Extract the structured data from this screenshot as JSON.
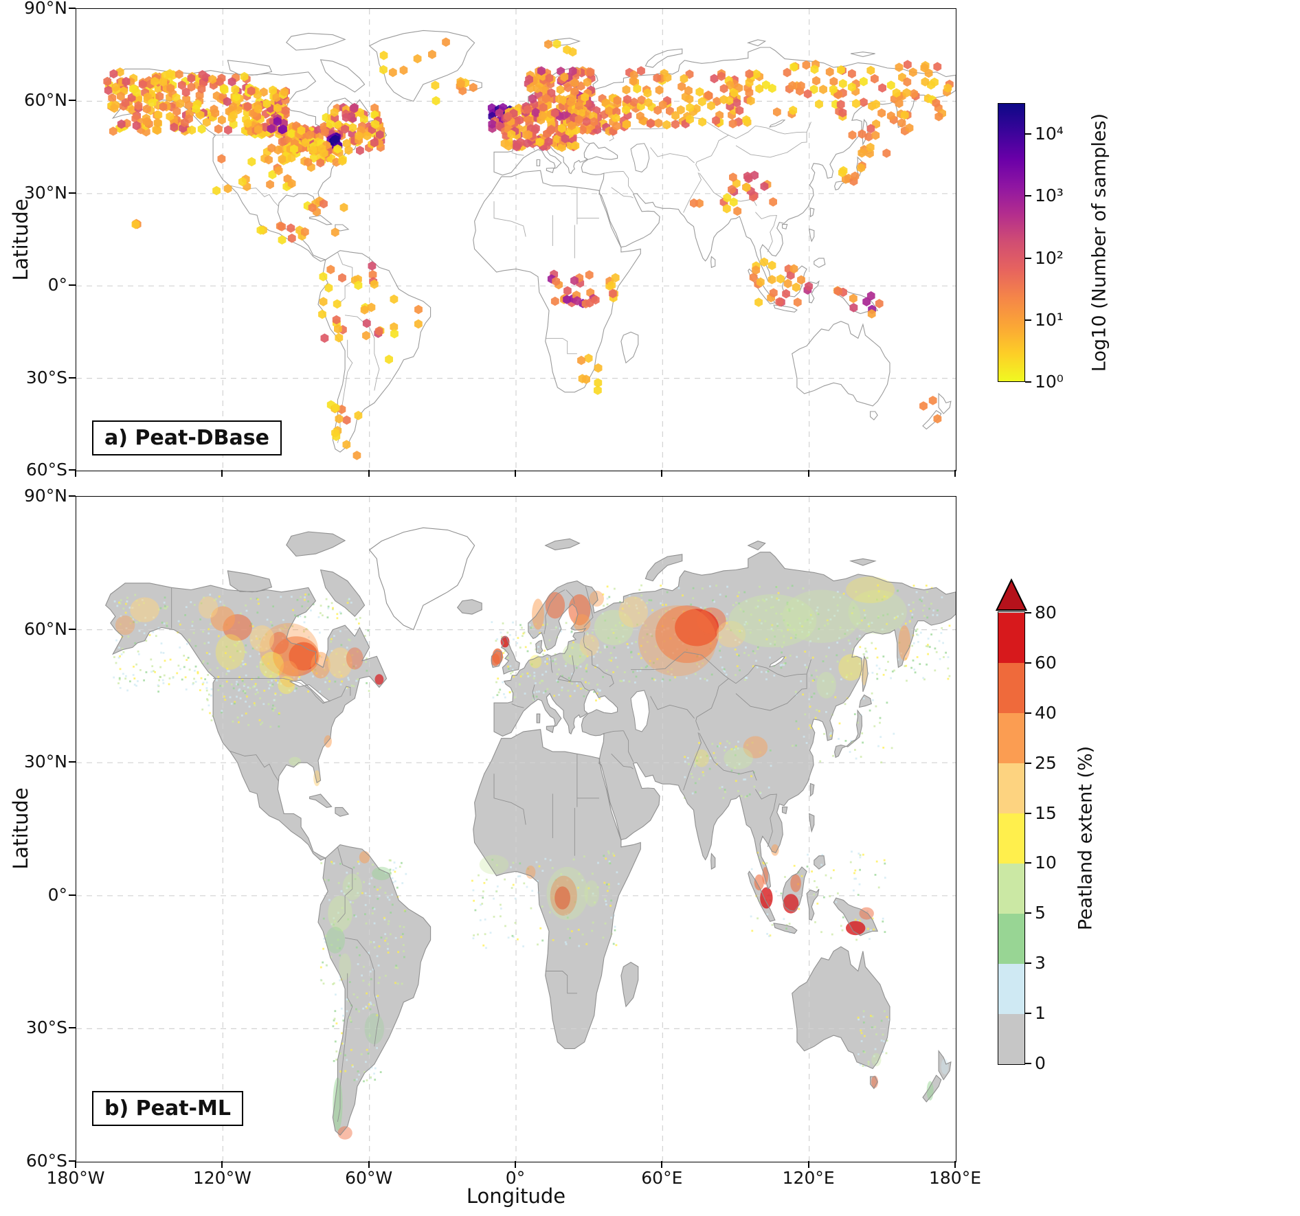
{
  "figure": {
    "xlabel": "Longitude",
    "ylabel": "Latitude",
    "x_ticks": [
      "180°W",
      "120°W",
      "60°W",
      "0°",
      "60°E",
      "120°E",
      "180°E"
    ],
    "y_ticks": [
      "90°N",
      "60°N",
      "30°N",
      "0°",
      "30°S",
      "60°S"
    ]
  },
  "panel_a": {
    "label": "a) Peat-DBase",
    "colorbar": {
      "label": "Log10 (Number of samples)",
      "ticks": [
        "10⁰",
        "10¹",
        "10²",
        "10³",
        "10⁴"
      ],
      "scale": "log",
      "range_decades": 4.5
    },
    "palette": [
      "#f0f921",
      "#fdce27",
      "#fba636",
      "#f58648",
      "#e7645e",
      "#d14e72",
      "#b42e8d",
      "#9016a2",
      "#6a00a8",
      "#3a049a",
      "#0d0887"
    ],
    "sample_clusters": [
      [
        -168,
        -140,
        58,
        70,
        40,
        0.05,
        0.45,
        11
      ],
      [
        -165,
        -110,
        50,
        69,
        160,
        0.05,
        0.5,
        12
      ],
      [
        -110,
        -94,
        49,
        65,
        90,
        0.05,
        0.5,
        13
      ],
      [
        -95,
        -76,
        43,
        52,
        70,
        0.05,
        0.5,
        45
      ],
      [
        -79,
        -55,
        44,
        58,
        90,
        0.05,
        0.55,
        46
      ],
      [
        -76,
        -71,
        45,
        48.5,
        12,
        0.75,
        1,
        14
      ],
      [
        -101,
        -95,
        50,
        55,
        7,
        0.55,
        0.85,
        15
      ],
      [
        -104,
        -68,
        39,
        47,
        40,
        0.05,
        0.35,
        16
      ],
      [
        -125,
        -80,
        30,
        42,
        20,
        0.05,
        0.3,
        17
      ],
      [
        -106,
        -84,
        14,
        22,
        10,
        0.05,
        0.4,
        18
      ],
      [
        -157,
        -154,
        19,
        21,
        3,
        0.1,
        0.3,
        19
      ],
      [
        -10,
        -2,
        51.5,
        58,
        20,
        0.7,
        1,
        20
      ],
      [
        -10,
        -1,
        50.5,
        57,
        12,
        0.35,
        0.65,
        21
      ],
      [
        -5,
        25,
        45,
        58,
        130,
        0.1,
        0.55,
        22
      ],
      [
        4,
        31,
        55,
        70,
        110,
        0.15,
        0.6,
        23
      ],
      [
        22,
        45,
        50,
        62,
        60,
        0.1,
        0.5,
        24
      ],
      [
        45,
        95,
        52,
        70,
        95,
        0.08,
        0.45,
        25
      ],
      [
        95,
        179,
        55,
        72,
        85,
        0.05,
        0.4,
        26
      ],
      [
        132,
        163,
        43,
        60,
        22,
        0.08,
        0.4,
        27
      ],
      [
        133,
        143,
        33,
        43,
        8,
        0.05,
        0.35,
        44
      ],
      [
        85,
        106,
        27,
        36,
        16,
        0.1,
        0.5,
        28
      ],
      [
        95,
        120,
        -6,
        8,
        24,
        0.1,
        0.6,
        29
      ],
      [
        130,
        151,
        -10,
        -1,
        10,
        0.2,
        0.7,
        30
      ],
      [
        14,
        32,
        -6,
        4,
        22,
        0.15,
        0.7,
        31
      ],
      [
        29,
        41,
        -6,
        6,
        8,
        0.1,
        0.4,
        32
      ],
      [
        24,
        34,
        -34,
        -21,
        7,
        0.05,
        0.3,
        33
      ],
      [
        -80,
        -55,
        -17,
        7,
        28,
        0.05,
        0.55,
        34
      ],
      [
        -52,
        -38,
        -24,
        -4,
        6,
        0.05,
        0.3,
        35
      ],
      [
        -76,
        -64,
        -56,
        -37,
        12,
        0.05,
        0.35,
        36
      ],
      [
        -86,
        -70,
        17,
        28,
        8,
        0.05,
        0.35,
        37
      ],
      [
        166,
        178,
        -47,
        -36,
        3,
        0.1,
        0.3,
        38
      ],
      [
        12,
        26,
        76,
        80,
        4,
        0.05,
        0.25,
        39
      ],
      [
        -24,
        -14,
        63,
        66.5,
        5,
        0.05,
        0.3,
        40
      ],
      [
        -55,
        -20,
        60,
        81,
        10,
        0.03,
        0.25,
        41
      ],
      [
        72,
        92,
        24,
        32,
        6,
        0.05,
        0.35,
        42
      ]
    ]
  },
  "panel_b": {
    "label": "b) Peat-ML",
    "colorbar": {
      "label": "Peatland extent (%)",
      "ticks": [
        "0",
        "1",
        "3",
        "5",
        "10",
        "15",
        "25",
        "40",
        "60",
        "80"
      ],
      "segment_colors": [
        "#c6c6c6",
        "#cfe9f3",
        "#98d594",
        "#cbe8a4",
        "#ffef4d",
        "#fdd380",
        "#fb9d52",
        "#ef6a3b",
        "#d7191c"
      ],
      "arrow_color": "#b5121b"
    },
    "land_color": "#c8c8c8",
    "speckle_colors": [
      "#cfe9f3",
      "#cfe9f3",
      "#98d594",
      "#cbe8a4",
      "#cbe8a4",
      "#ffef4d"
    ],
    "speckle_clusters": [
      [
        -165,
        -60,
        46,
        68,
        420,
        60
      ],
      [
        -130,
        -95,
        38,
        50,
        80,
        61
      ],
      [
        35,
        178,
        48,
        70,
        520,
        62
      ],
      [
        -10,
        35,
        44,
        62,
        180,
        63
      ],
      [
        -80,
        -45,
        -20,
        8,
        150,
        64
      ],
      [
        -18,
        42,
        -12,
        10,
        130,
        65
      ],
      [
        95,
        152,
        -10,
        10,
        90,
        66
      ],
      [
        -75,
        -55,
        -42,
        -20,
        70,
        67
      ],
      [
        68,
        105,
        22,
        35,
        70,
        68
      ],
      [
        140,
        153,
        -39,
        -26,
        35,
        69
      ],
      [
        112,
        155,
        30,
        46,
        60,
        70
      ]
    ],
    "extent_blobs": [
      [
        -87,
        54,
        6,
        3.2,
        "#d7191c",
        0.95
      ],
      [
        -90,
        54,
        9.5,
        4.5,
        "#ef6a3b",
        0.6
      ],
      [
        -93,
        55.5,
        12,
        6,
        "#fb9d52",
        0.4
      ],
      [
        -97,
        57,
        4,
        2.5,
        "#ef6a3b",
        0.5
      ],
      [
        -104,
        58,
        5,
        3,
        "#fdd380",
        0.5
      ],
      [
        -114,
        60.5,
        6,
        3,
        "#ef6a3b",
        0.55
      ],
      [
        -120,
        62.5,
        5,
        2.8,
        "#fb9d52",
        0.55
      ],
      [
        -126,
        65,
        4,
        2.5,
        "#fdd380",
        0.45
      ],
      [
        -152,
        64.5,
        6,
        2.8,
        "#fdd380",
        0.5
      ],
      [
        -160,
        61,
        4,
        2.2,
        "#fb9d52",
        0.4
      ],
      [
        -117,
        55,
        6,
        4,
        "#ffef4d",
        0.35
      ],
      [
        -100,
        52,
        5,
        3,
        "#ffef4d",
        0.4
      ],
      [
        -93,
        50,
        4,
        3,
        "#fb9d52",
        0.45
      ],
      [
        -80,
        52,
        4,
        3,
        "#fb9d52",
        0.5
      ],
      [
        -72,
        52.5,
        5,
        3.5,
        "#fdd380",
        0.5
      ],
      [
        -66,
        53.5,
        3.5,
        2.5,
        "#ef6a3b",
        0.45
      ],
      [
        -56,
        48.8,
        1.8,
        1.2,
        "#d7191c",
        0.7
      ],
      [
        -94,
        47.5,
        3.5,
        2,
        "#ffef4d",
        0.45
      ],
      [
        -77,
        34.8,
        1.6,
        1.4,
        "#fb9d52",
        0.5
      ],
      [
        -81.5,
        26.5,
        1.4,
        1.8,
        "#fdd380",
        0.55
      ],
      [
        -90.5,
        30.3,
        2.5,
        1,
        "#cbe8a4",
        0.5
      ],
      [
        -7.5,
        54,
        2.2,
        1.8,
        "#ef6a3b",
        0.8
      ],
      [
        -4.5,
        57.3,
        1.8,
        1.3,
        "#d7191c",
        0.8
      ],
      [
        -8.5,
        53.2,
        1.8,
        1.4,
        "#ef6a3b",
        0.7
      ],
      [
        9,
        63.5,
        2.5,
        3.5,
        "#fb9d52",
        0.5
      ],
      [
        16,
        65.5,
        4,
        3,
        "#ef6a3b",
        0.55
      ],
      [
        26,
        64.5,
        4.5,
        3.5,
        "#ef6a3b",
        0.6
      ],
      [
        27,
        61.5,
        3.5,
        2,
        "#fb9d52",
        0.5
      ],
      [
        33,
        67,
        3,
        1.8,
        "#fb9d52",
        0.45
      ],
      [
        24,
        54.5,
        5,
        2.5,
        "#cbe8a4",
        0.45
      ],
      [
        30,
        56.5,
        4,
        2.5,
        "#fdd380",
        0.4
      ],
      [
        8,
        52.8,
        2.5,
        1.5,
        "#ffef4d",
        0.4
      ],
      [
        40,
        60.5,
        8,
        4,
        "#cbe8a4",
        0.45
      ],
      [
        48,
        64,
        6,
        3.5,
        "#fdd380",
        0.45
      ],
      [
        74,
        60.5,
        9,
        4.2,
        "#d7191c",
        0.9
      ],
      [
        70,
        59,
        13,
        6.5,
        "#ef6a3b",
        0.55
      ],
      [
        66,
        57.5,
        16,
        8,
        "#fb9d52",
        0.35
      ],
      [
        80,
        62,
        6,
        3,
        "#ef6a3b",
        0.5
      ],
      [
        88,
        59,
        6,
        3,
        "#fdd380",
        0.4
      ],
      [
        105,
        62,
        18,
        6,
        "#cbe8a4",
        0.4
      ],
      [
        125,
        63,
        16,
        6,
        "#cbe8a4",
        0.35
      ],
      [
        148,
        64,
        12,
        5,
        "#cbe8a4",
        0.35
      ],
      [
        145,
        69,
        10,
        3,
        "#ffef4d",
        0.3
      ],
      [
        159,
        57,
        2.5,
        4,
        "#fb9d52",
        0.5
      ],
      [
        137,
        51.5,
        5,
        3,
        "#ffef4d",
        0.4
      ],
      [
        142.5,
        50.5,
        1.5,
        3,
        "#fdd380",
        0.5
      ],
      [
        127,
        47.5,
        4,
        3,
        "#cbe8a4",
        0.4
      ],
      [
        98,
        33.5,
        5,
        2.5,
        "#fb9d52",
        0.45
      ],
      [
        91,
        31,
        6,
        2.5,
        "#cbe8a4",
        0.4
      ],
      [
        76,
        31,
        3,
        2,
        "#ffef4d",
        0.3
      ],
      [
        19,
        -0.5,
        3.2,
        2.6,
        "#d7191c",
        0.9
      ],
      [
        19.5,
        0,
        5.5,
        4.5,
        "#ef6a3b",
        0.5
      ],
      [
        21,
        0.5,
        8.5,
        6,
        "#cbe8a4",
        0.35
      ],
      [
        6,
        5.3,
        2,
        1.5,
        "#fb9d52",
        0.45
      ],
      [
        -9,
        7,
        6,
        2.2,
        "#cbe8a4",
        0.35
      ],
      [
        31,
        0.5,
        3,
        3,
        "#cbe8a4",
        0.35
      ],
      [
        102.5,
        -0.5,
        2.6,
        2.4,
        "#d7191c",
        0.8
      ],
      [
        99.5,
        3,
        2,
        1.8,
        "#ef6a3b",
        0.6
      ],
      [
        112.5,
        -1.8,
        3.2,
        2.2,
        "#d7191c",
        0.75
      ],
      [
        114.5,
        2.8,
        2.2,
        2,
        "#ef6a3b",
        0.55
      ],
      [
        102,
        4.5,
        1.2,
        2,
        "#ef6a3b",
        0.55
      ],
      [
        139,
        -7.3,
        4,
        1.6,
        "#d7191c",
        0.8
      ],
      [
        143.5,
        -4,
        3,
        1.4,
        "#ef6a3b",
        0.5
      ],
      [
        106,
        10.3,
        1.6,
        1.3,
        "#fb9d52",
        0.5
      ],
      [
        -72,
        -4,
        5,
        4,
        "#cbe8a4",
        0.45
      ],
      [
        -74,
        -10,
        4,
        3,
        "#98d594",
        0.4
      ],
      [
        -67,
        2,
        4,
        3,
        "#cbe8a4",
        0.4
      ],
      [
        -62,
        8.7,
        2.2,
        1.4,
        "#fb9d52",
        0.5
      ],
      [
        -55,
        5,
        4,
        1.5,
        "#98d594",
        0.45
      ],
      [
        -58,
        -30,
        4,
        3.5,
        "#98d594",
        0.3
      ],
      [
        -73,
        -47,
        2,
        6,
        "#98d594",
        0.5
      ],
      [
        -70,
        -53.5,
        3,
        1.5,
        "#ef6a3b",
        0.45
      ],
      [
        -70,
        -16,
        2.5,
        3,
        "#cbe8a4",
        0.35
      ],
      [
        146.8,
        -42,
        1.4,
        1.4,
        "#ef6a3b",
        0.5
      ],
      [
        147.5,
        -37,
        2,
        1.5,
        "#cbe8a4",
        0.4
      ],
      [
        169.5,
        -44,
        1.4,
        2.2,
        "#98d594",
        0.5
      ],
      [
        175.5,
        -38.5,
        1.5,
        1.8,
        "#cfe9f3",
        0.4
      ]
    ]
  }
}
